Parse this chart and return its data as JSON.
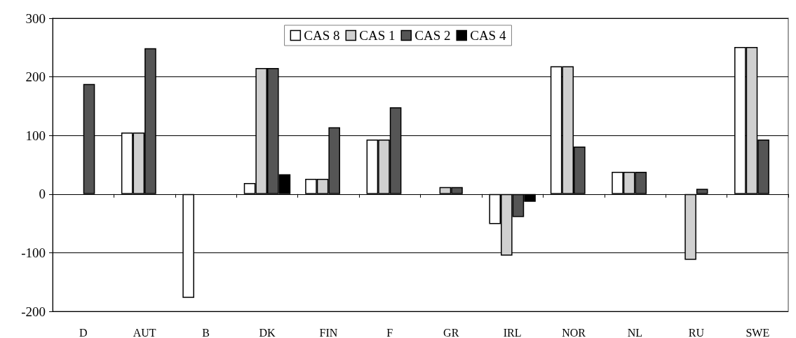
{
  "chart_data": {
    "type": "bar",
    "categories": [
      "D",
      "AUT",
      "B",
      "DK",
      "FIN",
      "F",
      "GR",
      "IRL",
      "NOR",
      "NL",
      "RU",
      "SWE"
    ],
    "series": [
      {
        "name": "CAS 8",
        "color": "#ffffff",
        "values": [
          null,
          105,
          -177,
          19,
          26,
          93,
          null,
          -51,
          218,
          38,
          null,
          251
        ]
      },
      {
        "name": "CAS 1",
        "color": "#d0d0d0",
        "values": [
          null,
          105,
          null,
          215,
          26,
          93,
          12,
          -105,
          218,
          38,
          -112,
          251
        ]
      },
      {
        "name": "CAS 2",
        "color": "#555555",
        "values": [
          188,
          249,
          null,
          215,
          114,
          148,
          12,
          -39,
          81,
          38,
          9,
          93
        ]
      },
      {
        "name": "CAS 4",
        "color": "#000000",
        "values": [
          null,
          null,
          null,
          34,
          null,
          null,
          null,
          -13,
          null,
          null,
          null,
          null
        ]
      }
    ],
    "ylim": [
      -200,
      300
    ],
    "yticks": [
      -200,
      -100,
      0,
      100,
      200,
      300
    ],
    "grid": "y",
    "legend": "top"
  }
}
